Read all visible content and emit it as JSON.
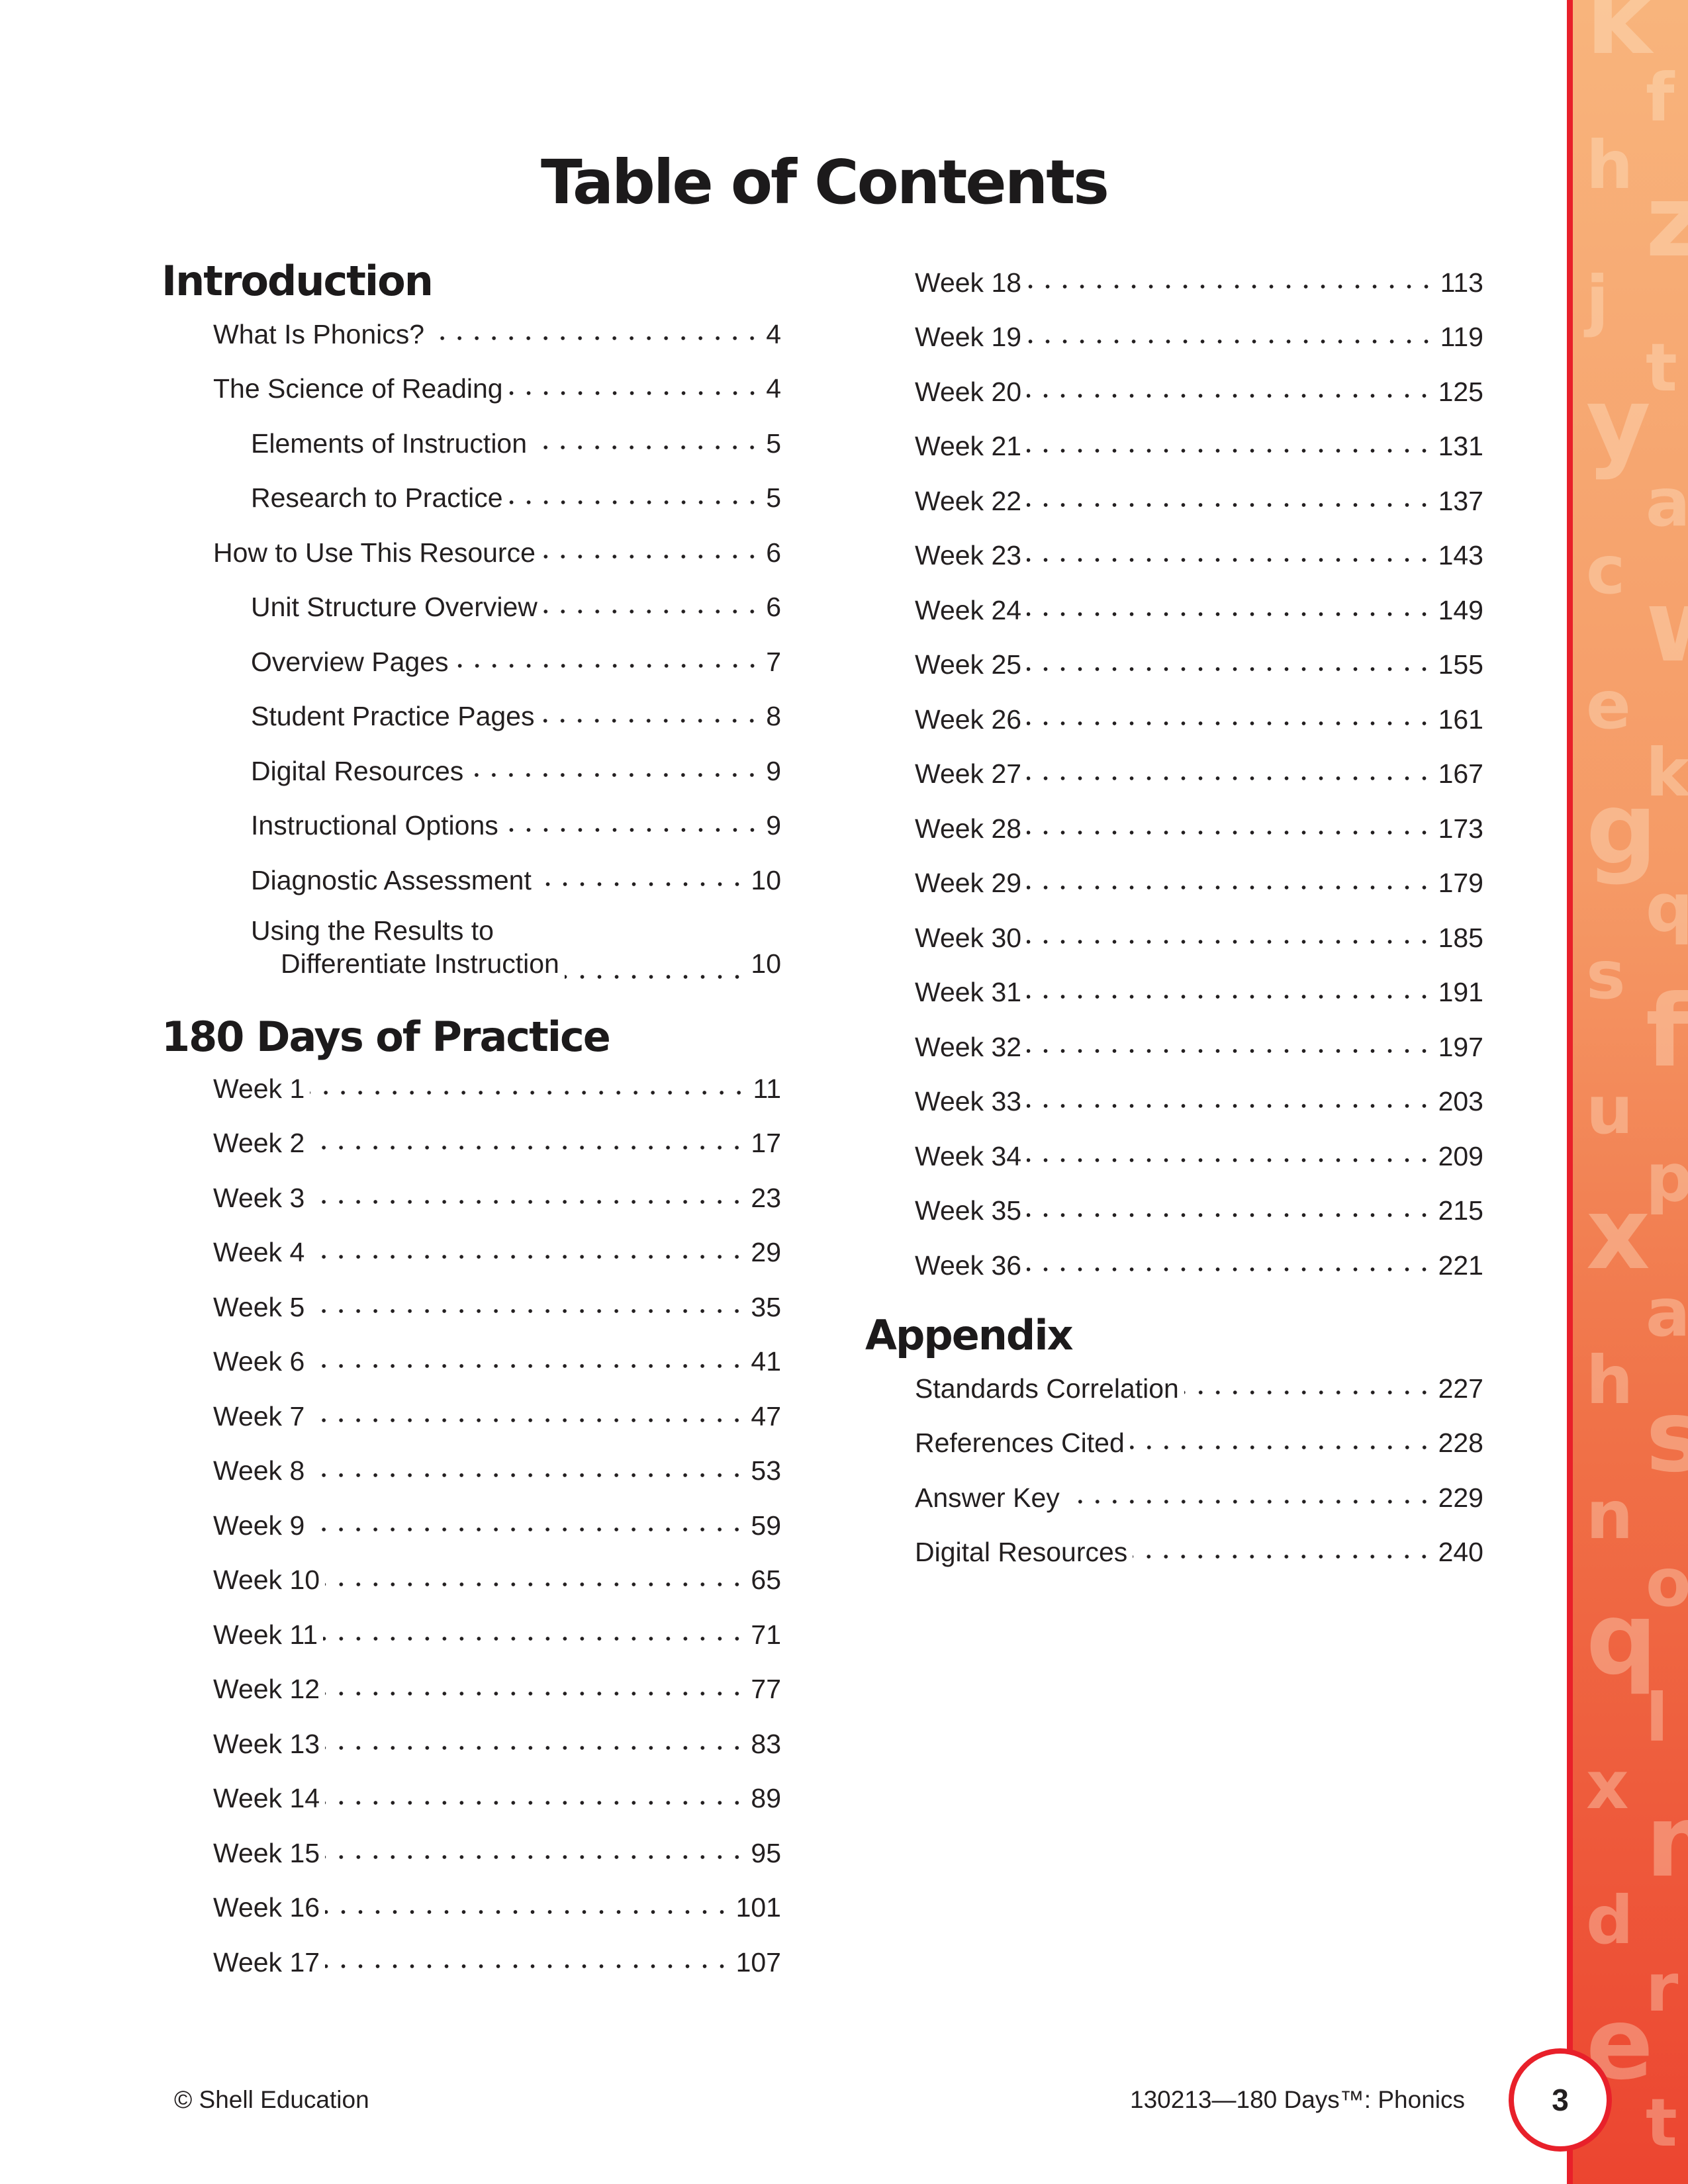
{
  "title": "Table of Contents",
  "sections": {
    "introduction": {
      "heading": "Introduction",
      "entries": [
        {
          "label": "What Is Phonics?",
          "page": "4",
          "indent": false
        },
        {
          "label": "The Science of Reading",
          "page": "4",
          "indent": false
        },
        {
          "label": "Elements of Instruction",
          "page": "5",
          "indent": true
        },
        {
          "label": "Research to Practice",
          "page": "5",
          "indent": true
        },
        {
          "label": "How to Use This Resource",
          "page": "6",
          "indent": false
        },
        {
          "label": "Unit Structure Overview",
          "page": "6",
          "indent": true
        },
        {
          "label": "Overview Pages",
          "page": "7",
          "indent": true
        },
        {
          "label": "Student Practice Pages",
          "page": "8",
          "indent": true
        },
        {
          "label": "Digital Resources",
          "page": "9",
          "indent": true
        },
        {
          "label": "Instructional Options",
          "page": "9",
          "indent": true
        },
        {
          "label": "Diagnostic Assessment",
          "page": "10",
          "indent": true
        }
      ],
      "multiline_entry": {
        "line1": "Using the Results to",
        "line2": "Differentiate Instruction",
        "page": "10"
      }
    },
    "practice": {
      "heading": "180 Days of Practice",
      "entries_left": [
        {
          "label": "Week 1",
          "page": "11"
        },
        {
          "label": "Week 2",
          "page": "17"
        },
        {
          "label": "Week 3",
          "page": "23"
        },
        {
          "label": "Week 4",
          "page": "29"
        },
        {
          "label": "Week 5",
          "page": "35"
        },
        {
          "label": "Week 6",
          "page": "41"
        },
        {
          "label": "Week 7",
          "page": "47"
        },
        {
          "label": "Week 8",
          "page": "53"
        },
        {
          "label": "Week 9",
          "page": "59"
        },
        {
          "label": "Week 10",
          "page": "65"
        },
        {
          "label": "Week 11",
          "page": "71"
        },
        {
          "label": "Week 12",
          "page": "77"
        },
        {
          "label": "Week 13",
          "page": "83"
        },
        {
          "label": "Week 14",
          "page": "89"
        },
        {
          "label": "Week 15",
          "page": "95"
        },
        {
          "label": "Week 16",
          "page": "101"
        },
        {
          "label": "Week 17",
          "page": "107"
        }
      ],
      "entries_right": [
        {
          "label": "Week 18",
          "page": "113"
        },
        {
          "label": "Week 19",
          "page": "119"
        },
        {
          "label": "Week 20",
          "page": "125"
        },
        {
          "label": "Week 21",
          "page": "131"
        },
        {
          "label": "Week 22",
          "page": "137"
        },
        {
          "label": "Week 23",
          "page": "143"
        },
        {
          "label": "Week 24",
          "page": "149"
        },
        {
          "label": "Week 25",
          "page": "155"
        },
        {
          "label": "Week 26",
          "page": "161"
        },
        {
          "label": "Week 27",
          "page": "167"
        },
        {
          "label": "Week 28",
          "page": "173"
        },
        {
          "label": "Week 29",
          "page": "179"
        },
        {
          "label": "Week 30",
          "page": "185"
        },
        {
          "label": "Week 31",
          "page": "191"
        },
        {
          "label": "Week 32",
          "page": "197"
        },
        {
          "label": "Week 33",
          "page": "203"
        },
        {
          "label": "Week 34",
          "page": "209"
        },
        {
          "label": "Week 35",
          "page": "215"
        },
        {
          "label": "Week 36",
          "page": "221"
        }
      ]
    },
    "appendix": {
      "heading": "Appendix",
      "entries": [
        {
          "label": "Standards Correlation",
          "page": "227"
        },
        {
          "label": "References Cited",
          "page": "228"
        },
        {
          "label": "Answer Key",
          "page": "229"
        },
        {
          "label": "Digital Resources",
          "page": "240"
        }
      ]
    }
  },
  "footer": {
    "publisher": "© Shell Education",
    "product": "130213—180 Days™: Phonics",
    "page_number": "3"
  },
  "colors": {
    "accent_red": "#e8202a",
    "band_top": "#f8b47c",
    "band_bottom": "#ec4530"
  },
  "decorative_letters": [
    "k",
    "f",
    "h",
    "z",
    "j",
    "t",
    "y",
    "a",
    "c",
    "w",
    "e",
    "k",
    "g",
    "q",
    "s",
    "f",
    "u",
    "p",
    "x",
    "a",
    "h",
    "s",
    "n",
    "o",
    "q",
    "l",
    "x",
    "m",
    "d",
    "r",
    "e",
    "t"
  ]
}
